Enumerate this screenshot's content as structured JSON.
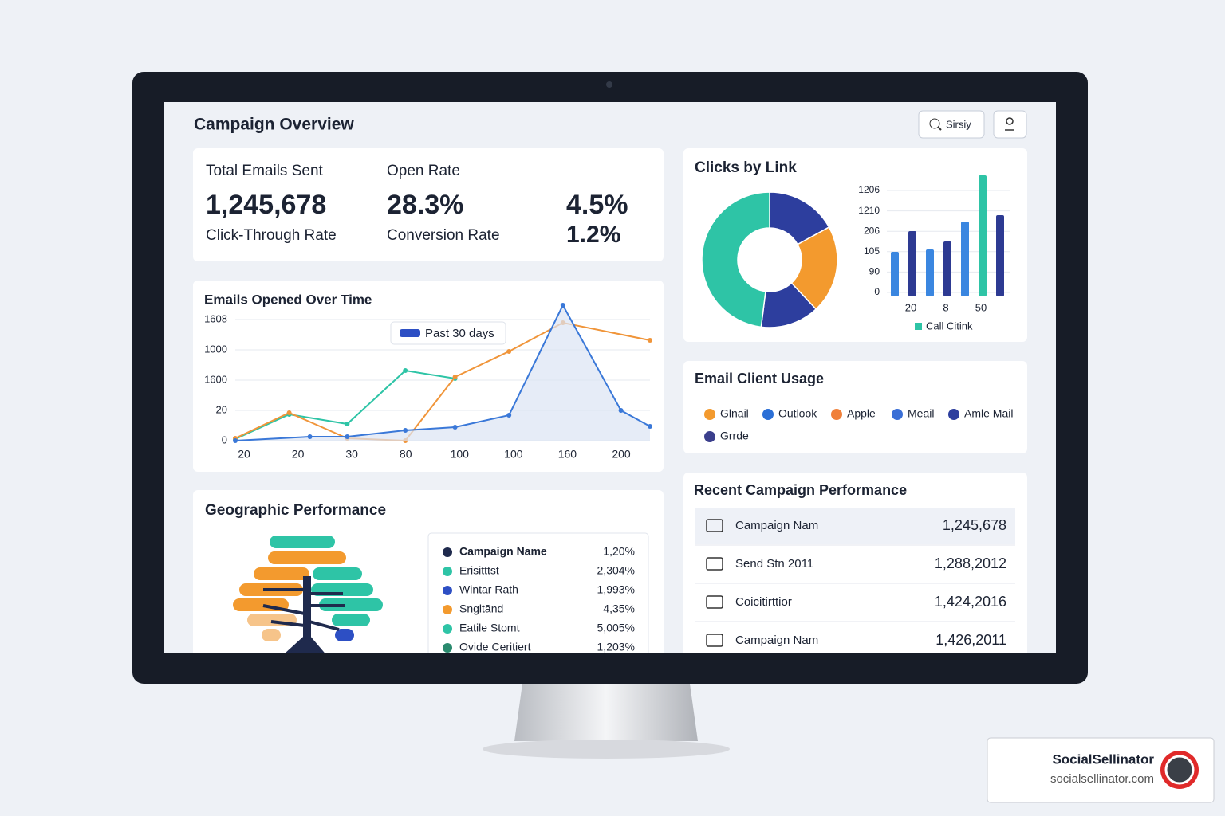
{
  "header": {
    "title": "Campaign Overview",
    "search_label": "Sirsiy"
  },
  "kpis": {
    "labels": [
      "Total Emails Sent",
      "Open Rate",
      "Click-Through Rate",
      "Conversion Rate"
    ],
    "values": [
      "1,245,678",
      "28.3%",
      "4.5%",
      "1.2%"
    ]
  },
  "chart_data": [
    {
      "type": "line",
      "title": "Emails Opened Over Time",
      "legend": "Past 30 days",
      "y_labels": [
        "1608",
        "1000",
        "1600",
        "20",
        "0"
      ],
      "x_labels": [
        "20",
        "20",
        "30",
        "80",
        "100",
        "100",
        "160",
        "200"
      ],
      "xlim": [
        0,
        100
      ],
      "ylim": [
        0,
        180
      ],
      "series": [
        {
          "name": "teal",
          "color": "#2ec4a6",
          "x": [
            0,
            13,
            27,
            41,
            53
          ],
          "values": [
            2,
            33,
            21,
            88,
            78
          ]
        },
        {
          "name": "orange",
          "color": "#f0953a",
          "x": [
            0,
            13,
            27,
            41,
            53,
            66,
            79,
            100
          ],
          "values": [
            3,
            35,
            3,
            0,
            80,
            112,
            148,
            126
          ]
        },
        {
          "name": "blue",
          "color": "#3a78d8",
          "x": [
            0,
            18,
            27,
            41,
            53,
            66,
            79,
            93,
            100
          ],
          "values": [
            0,
            5,
            5,
            13,
            17,
            32,
            170,
            38,
            18
          ]
        }
      ]
    },
    {
      "type": "pie",
      "title": "Clicks by Link",
      "values": [
        17,
        21,
        14,
        48
      ],
      "colors": [
        "#2d3e9e",
        "#f39a2e",
        "#2d3e9e",
        "#2ec4a6"
      ]
    },
    {
      "type": "bar",
      "legend": "Call Citink",
      "legend_color": "#2ec4a6",
      "y_labels": [
        "1206",
        "1210",
        "206",
        "105",
        "90",
        "0"
      ],
      "x_labels": [
        "20",
        "8",
        "50"
      ],
      "ylim": [
        0,
        160
      ],
      "values": [
        56,
        82,
        59,
        69,
        94,
        152,
        102
      ],
      "colors": [
        "#3a86e0",
        "#2d3a92",
        "#3a86e0",
        "#2d3a92",
        "#3a86e0",
        "#2ec4a6",
        "#2d3a92"
      ]
    }
  ],
  "email_client_usage": {
    "title": "Email Client Usage",
    "items": [
      {
        "name": "Glnail",
        "color": "#f39a2e"
      },
      {
        "name": "Outlook",
        "color": "#2b6fd6"
      },
      {
        "name": "Apple",
        "color": "#f0803a"
      },
      {
        "name": "Meail",
        "color": "#3a6fd6"
      },
      {
        "name": "Amle Mail",
        "color": "#2d3e9e"
      },
      {
        "name": "Grrde",
        "color": "#3b3f8c"
      }
    ]
  },
  "geographic_performance": {
    "title": "Geographic Performance",
    "rows": [
      {
        "name": "Campaign Name",
        "value": "1,20%",
        "color": "#1f2a4d"
      },
      {
        "name": "Erisitttst",
        "value": "2,304%",
        "color": "#2ec4a6"
      },
      {
        "name": "Wintar Rath",
        "value": "1,993%",
        "color": "#2d4fc4"
      },
      {
        "name": "Sngltānd",
        "value": "4,35%",
        "color": "#f39a2e"
      },
      {
        "name": "Eatile Stomt",
        "value": "5,005%",
        "color": "#2ec4a6"
      },
      {
        "name": "Ovide Ceritiert",
        "value": "1,203%",
        "color": "#2a8a6e"
      }
    ]
  },
  "recent_campaign_performance": {
    "title": "Recent Campaign Performance",
    "rows": [
      {
        "name": "Campaign Nam",
        "value": "1,245,678"
      },
      {
        "name": "Send Stn 2011",
        "value": "1,288,2012"
      },
      {
        "name": "Coicitirttior",
        "value": "1,424,2016"
      },
      {
        "name": "Campaign Nam",
        "value": "1,426,2011"
      }
    ]
  },
  "brand": {
    "name": "SocialSellinator",
    "url": "socialsellinator.com"
  }
}
